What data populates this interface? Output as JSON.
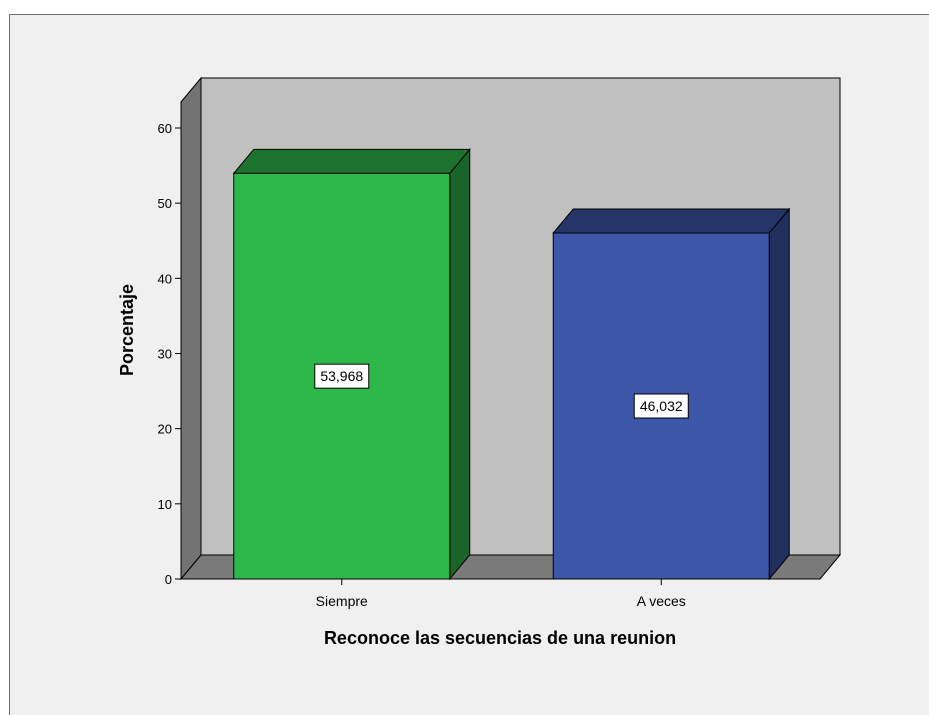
{
  "chart_data": {
    "type": "bar",
    "style": "3d",
    "title": "",
    "xlabel": "Reconoce las secuencias de una reunion",
    "ylabel": "Porcentaje",
    "ylim": [
      0,
      60
    ],
    "yticks": [
      0,
      10,
      20,
      30,
      40,
      50,
      60
    ],
    "categories": [
      "Siempre",
      "A veces"
    ],
    "values": [
      53.968,
      46.032
    ],
    "data_labels": [
      "53,968",
      "46,032"
    ],
    "colors": [
      "#2eb84a",
      "#3c56a8"
    ],
    "grid": false,
    "legend": "none"
  }
}
